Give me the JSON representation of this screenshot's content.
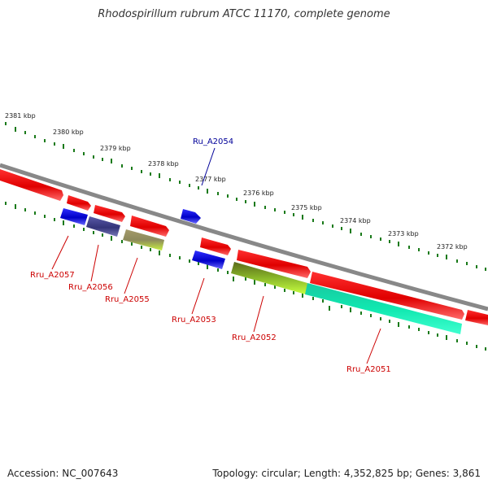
{
  "title": "Rhodospirillum rubrum ATCC 11170, complete genome",
  "footer": {
    "accession": "Accession: NC_007643",
    "summary": "Topology: circular; Length: 4,352,825 bp; Genes: 3,861"
  },
  "colors": {
    "backbone": "#888888",
    "scale_dots": "#1a7a1a",
    "label_red": "#cc0000",
    "label_blue": "#000099"
  },
  "scale": {
    "labels": [
      {
        "text": "2381 kbp",
        "kbp": 2381
      },
      {
        "text": "2380 kbp",
        "kbp": 2380
      },
      {
        "text": "2379 kbp",
        "kbp": 2379
      },
      {
        "text": "2378 kbp",
        "kbp": 2378
      },
      {
        "text": "2377 kbp",
        "kbp": 2377
      },
      {
        "text": "2376 kbp",
        "kbp": 2376
      },
      {
        "text": "2375 kbp",
        "kbp": 2375
      },
      {
        "text": "2374 kbp",
        "kbp": 2374
      },
      {
        "text": "2373 kbp",
        "kbp": 2373
      },
      {
        "text": "2372 kbp",
        "kbp": 2372
      }
    ]
  },
  "genes": [
    {
      "label": "Ru_A2054",
      "strand": "forward-top",
      "color": "#0000cc"
    },
    {
      "label": "Rru_A2057",
      "strand": "reverse",
      "color": "#0000cc"
    },
    {
      "label": "Rru_A2056",
      "strand": "reverse",
      "color": "#3a3a8a"
    },
    {
      "label": "Rru_A2055",
      "strand": "reverse",
      "color": "#b6c84a"
    },
    {
      "label": "Rru_A2053",
      "strand": "reverse",
      "color": "#0000cc"
    },
    {
      "label": "Rru_A2052",
      "strand": "reverse",
      "color": "#9acd32"
    },
    {
      "label": "Rru_A2051",
      "strand": "reverse",
      "color": "#20e8a8"
    }
  ]
}
